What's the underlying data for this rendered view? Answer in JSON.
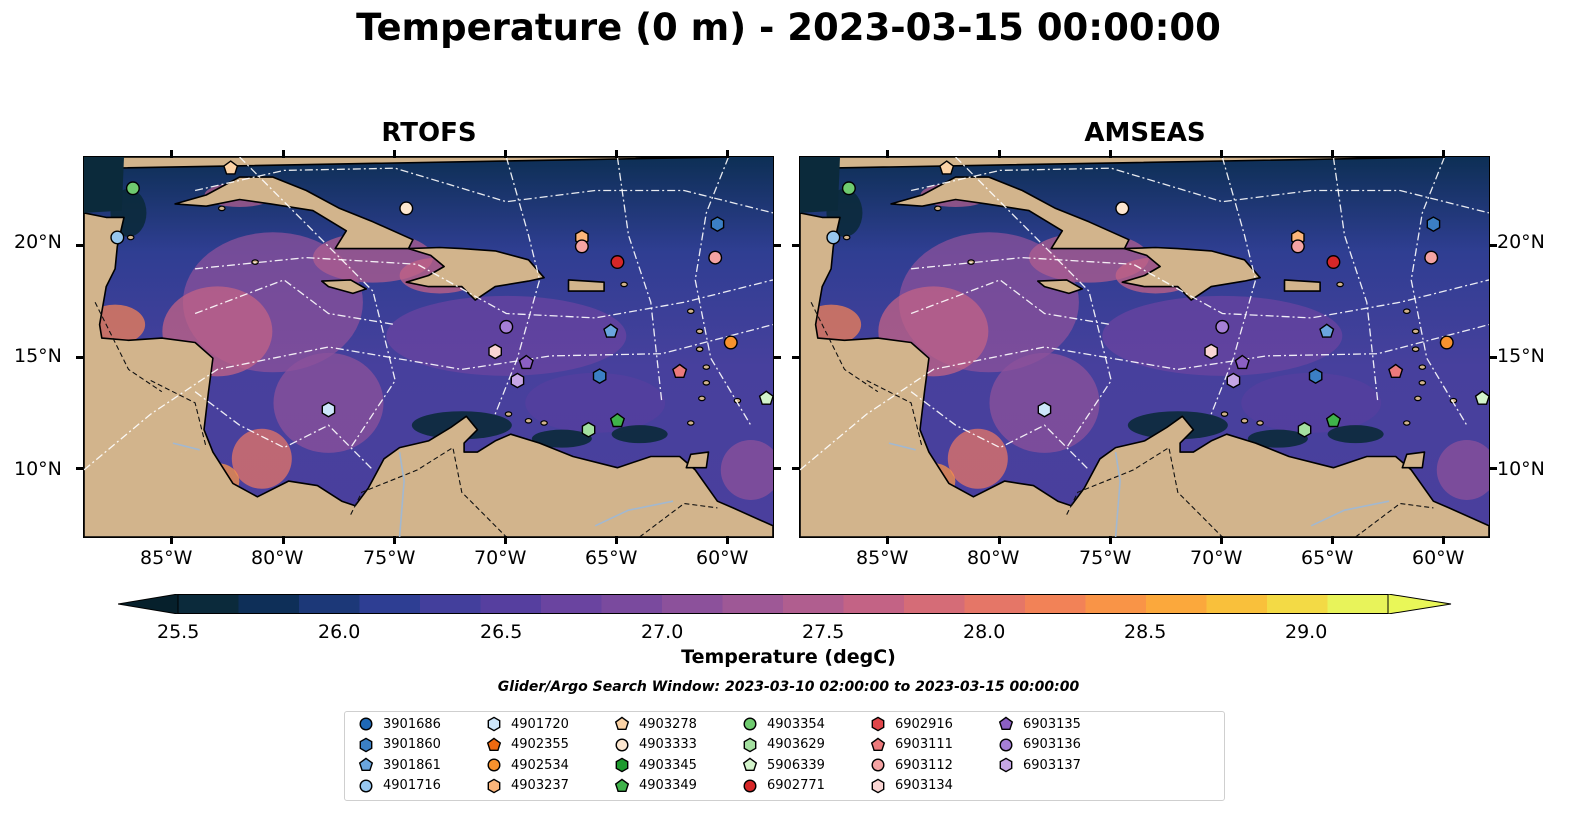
{
  "title": "Temperature (0 m) - 2023-03-15 00:00:00",
  "panels": [
    {
      "title": "RTOFS"
    },
    {
      "title": "AMSEAS"
    }
  ],
  "axes": {
    "lon_labels": [
      "85°W",
      "80°W",
      "75°W",
      "70°W",
      "65°W",
      "60°W"
    ],
    "lat_labels": [
      "20°N",
      "15°N",
      "10°N"
    ],
    "lon_values": [
      -85,
      -80,
      -75,
      -70,
      -65,
      -60
    ],
    "lat_values": [
      20,
      15,
      10
    ],
    "lon_range": [
      -89,
      -58
    ],
    "lat_range": [
      7,
      24
    ]
  },
  "colorbar": {
    "label": "Temperature (degC)",
    "ticks": [
      "25.5",
      "26.0",
      "26.5",
      "27.0",
      "27.5",
      "28.0",
      "28.5",
      "29.0"
    ],
    "tick_values": [
      25.5,
      26.0,
      26.5,
      27.0,
      27.5,
      28.0,
      28.5,
      29.0
    ],
    "range": [
      25.5,
      29.25
    ],
    "extend": "both",
    "colors": [
      "#0b2a3b",
      "#0e2f58",
      "#1c3878",
      "#2e3e93",
      "#433f9c",
      "#563f9f",
      "#6a44a0",
      "#7a4a9e",
      "#8c519b",
      "#9e5896",
      "#b05e8f",
      "#c36385",
      "#d56c77",
      "#e57667",
      "#f28257",
      "#f99447",
      "#fba83c",
      "#f9c03b",
      "#f3da45",
      "#e8f35a"
    ],
    "under_color": "#06202c",
    "over_color": "#e9f758"
  },
  "search_window": "Glider/Argo Search Window: 2023-03-10 02:00:00 to 2023-03-15 00:00:00",
  "legend": [
    {
      "label": "3901686",
      "marker": "circle",
      "color": "#1f68b5"
    },
    {
      "label": "3901860",
      "marker": "hexagon",
      "color": "#3b7fc4"
    },
    {
      "label": "3901861",
      "marker": "pentagon",
      "color": "#6aa5de"
    },
    {
      "label": "4901716",
      "marker": "circle",
      "color": "#97c7ef"
    },
    {
      "label": "4901720",
      "marker": "hexagon",
      "color": "#cde6fa"
    },
    {
      "label": "4902355",
      "marker": "pentagon",
      "color": "#f06a10"
    },
    {
      "label": "4902534",
      "marker": "circle",
      "color": "#f7922e"
    },
    {
      "label": "4903237",
      "marker": "hexagon",
      "color": "#fbb57a"
    },
    {
      "label": "4903278",
      "marker": "pentagon",
      "color": "#fcd3a6"
    },
    {
      "label": "4903333",
      "marker": "circle",
      "color": "#fde7d0"
    },
    {
      "label": "4903345",
      "marker": "hexagon",
      "color": "#1e9a2e"
    },
    {
      "label": "4903349",
      "marker": "pentagon",
      "color": "#3fb24a"
    },
    {
      "label": "4903354",
      "marker": "circle",
      "color": "#6fcb6f"
    },
    {
      "label": "4903629",
      "marker": "hexagon",
      "color": "#a4e0a0"
    },
    {
      "label": "5906339",
      "marker": "pentagon",
      "color": "#d3f4cb"
    },
    {
      "label": "6902771",
      "marker": "circle",
      "color": "#d62728"
    },
    {
      "label": "6902916",
      "marker": "hexagon",
      "color": "#e0464a"
    },
    {
      "label": "6903111",
      "marker": "pentagon",
      "color": "#ec7a7c"
    },
    {
      "label": "6903112",
      "marker": "circle",
      "color": "#f4a3a3"
    },
    {
      "label": "6903134",
      "marker": "hexagon",
      "color": "#fad6d4"
    },
    {
      "label": "6903135",
      "marker": "pentagon",
      "color": "#8b5fc3"
    },
    {
      "label": "6903136",
      "marker": "circle",
      "color": "#a67fd6"
    },
    {
      "label": "6903137",
      "marker": "hexagon",
      "color": "#c6a6e6"
    }
  ],
  "map_colors": {
    "land": "#d2b48c",
    "pacific_rtofs": "#e8f35a",
    "pacific_amseas": "#96b5df"
  },
  "float_positions": [
    {
      "id": "3901860",
      "lon": -60.5,
      "lat": 21.0
    },
    {
      "id": "4901716",
      "lon": -87.5,
      "lat": 20.4
    },
    {
      "id": "4903354",
      "lon": -86.8,
      "lat": 22.6
    },
    {
      "id": "4903278",
      "lon": -82.4,
      "lat": 23.5
    },
    {
      "id": "4903333",
      "lon": -74.5,
      "lat": 21.7
    },
    {
      "id": "4903237",
      "lon": -66.6,
      "lat": 20.4
    },
    {
      "id": "6903112",
      "lon": -66.6,
      "lat": 20.0
    },
    {
      "id": "6902771",
      "lon": -65.0,
      "lat": 19.3
    },
    {
      "id": "6903112",
      "lon": -60.6,
      "lat": 19.5
    },
    {
      "id": "6903136",
      "lon": -70.0,
      "lat": 16.4
    },
    {
      "id": "3901861",
      "lon": -65.3,
      "lat": 16.2
    },
    {
      "id": "6903134",
      "lon": -70.5,
      "lat": 15.3
    },
    {
      "id": "6903135",
      "lon": -69.1,
      "lat": 14.8
    },
    {
      "id": "6903137",
      "lon": -69.5,
      "lat": 14.0
    },
    {
      "id": "3901860",
      "lon": -65.8,
      "lat": 14.2
    },
    {
      "id": "6903111",
      "lon": -62.2,
      "lat": 14.4
    },
    {
      "id": "4902534",
      "lon": -59.9,
      "lat": 15.7
    },
    {
      "id": "4901720",
      "lon": -78.0,
      "lat": 12.7
    },
    {
      "id": "4903629",
      "lon": -66.3,
      "lat": 11.8
    },
    {
      "id": "4903349",
      "lon": -65.0,
      "lat": 12.2
    },
    {
      "id": "5906339",
      "lon": -58.3,
      "lat": 13.2
    }
  ]
}
